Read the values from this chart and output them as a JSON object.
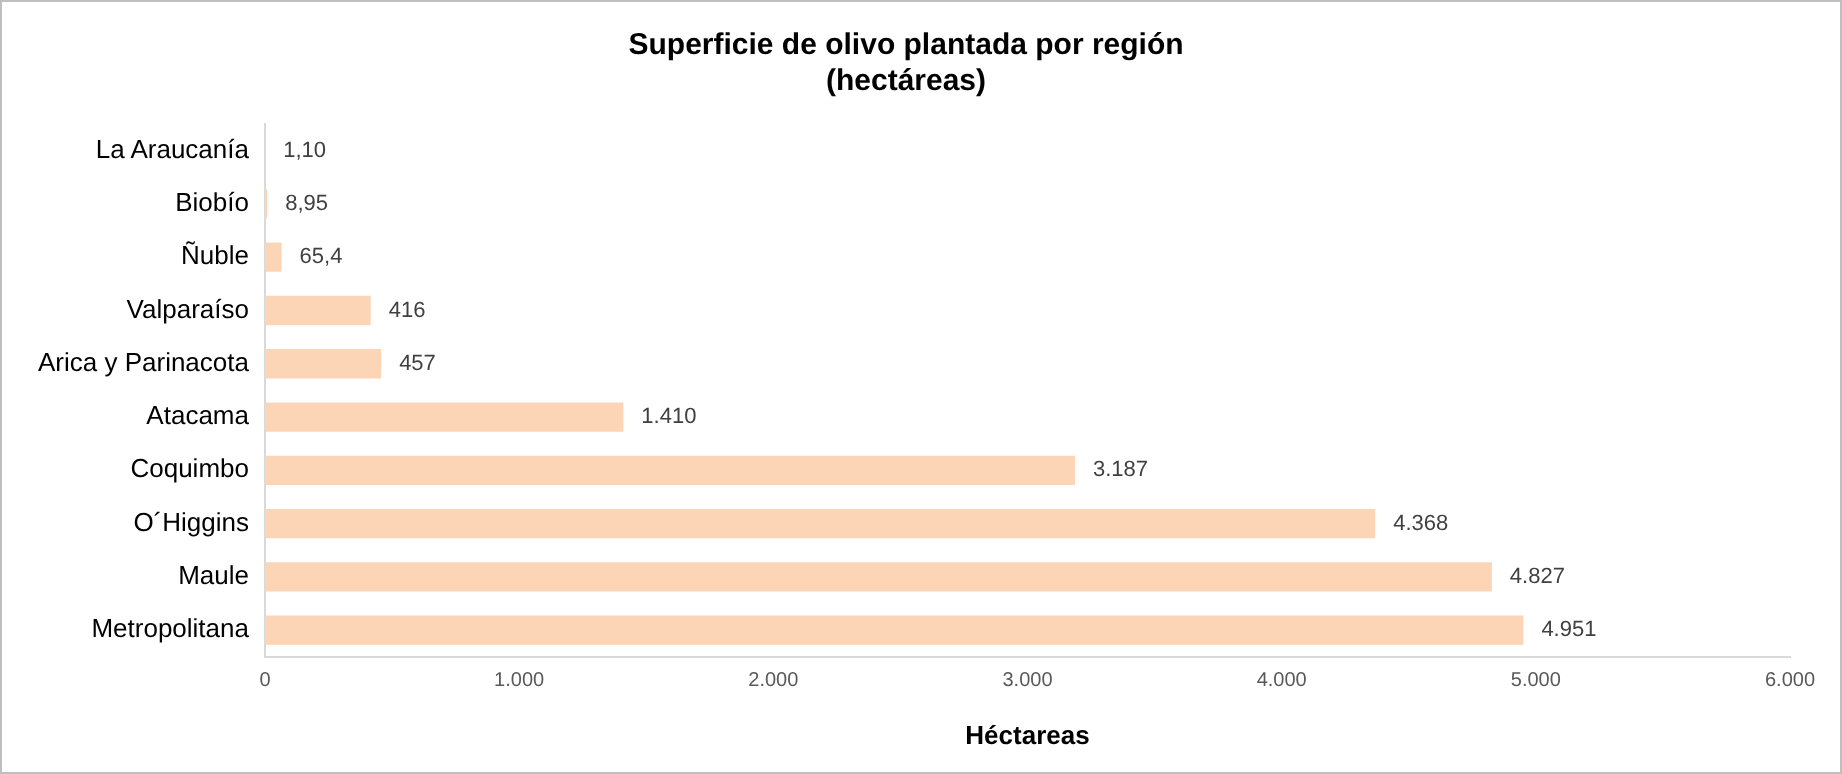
{
  "chart_data": {
    "type": "bar",
    "orientation": "horizontal",
    "title": "Superficie de olivo plantada por región\n(hectáreas)",
    "xlabel": "Héctareas",
    "categories": [
      "La Araucanía",
      "Biobío",
      "Ñuble",
      "Valparaíso",
      "Arica y Parinacota",
      "Atacama",
      "Coquimbo",
      "O´Higgins",
      "Maule",
      "Metropolitana"
    ],
    "values": [
      1.1,
      8.95,
      65.4,
      416,
      457,
      1410,
      3187,
      4368,
      4827,
      4951
    ],
    "value_labels": [
      "1,10",
      "8,95",
      "65,4",
      "416",
      "457",
      "1.410",
      "3.187",
      "4.368",
      "4.827",
      "4.951"
    ],
    "color": "#fbd5b5",
    "xlim": [
      0,
      6000
    ],
    "xticks": [
      0,
      {
        "value": 1000,
        "label": "1.000"
      },
      {
        "value": 2000,
        "label": "2.000"
      },
      {
        "value": 3000,
        "label": "3.000"
      },
      {
        "value": 4000,
        "label": "4.000"
      },
      {
        "value": 5000,
        "label": "5.000"
      },
      {
        "value": 6000,
        "label": "6.000"
      }
    ],
    "grid": false,
    "legend": false
  }
}
